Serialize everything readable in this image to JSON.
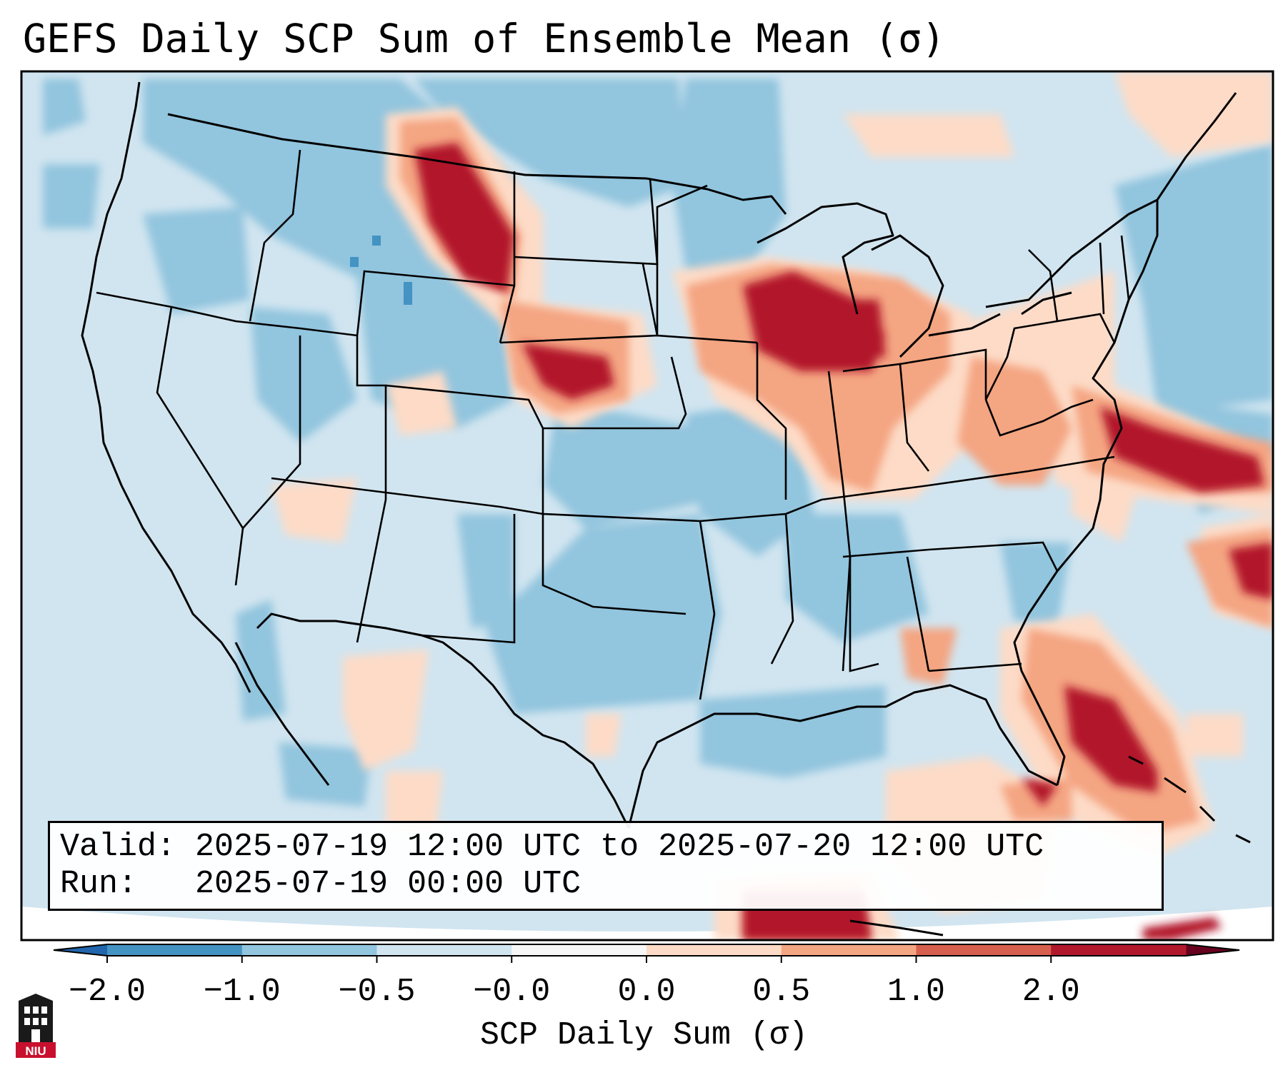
{
  "title": "GEFS Daily SCP Sum of Ensemble Mean (σ)",
  "info": {
    "valid_label": "Valid:",
    "valid_value": "2025-07-19 12:00 UTC to 2025-07-20 12:00 UTC",
    "run_label": "Run:",
    "run_value": "2025-07-19 00:00 UTC"
  },
  "colorbar": {
    "label": "SCP Daily Sum (σ)",
    "ticks": [
      "−2.0",
      "−1.0",
      "−0.5",
      "−0.0",
      "0.0",
      "0.5",
      "1.0",
      "2.0"
    ],
    "bins": [
      "#4393c3",
      "#92c5de",
      "#d1e5f0",
      "#f7f7f7",
      "#fddbc7",
      "#f4a582",
      "#d6604d",
      "#b2182b"
    ],
    "extend": "both"
  },
  "logo": {
    "text": "NIU"
  },
  "map": {
    "background": "#d1e5f0",
    "regions": [
      {
        "name": "northern-plains-band",
        "level": "strong-positive"
      },
      {
        "name": "upper-midwest-great-lakes",
        "level": "strong-positive"
      },
      {
        "name": "mid-atlantic-offshore",
        "level": "strong-positive"
      },
      {
        "name": "florida-bahamas",
        "level": "strong-positive"
      },
      {
        "name": "caribbean-cuba",
        "level": "strong-positive"
      },
      {
        "name": "western-atlantic",
        "level": "strong-positive"
      }
    ]
  }
}
